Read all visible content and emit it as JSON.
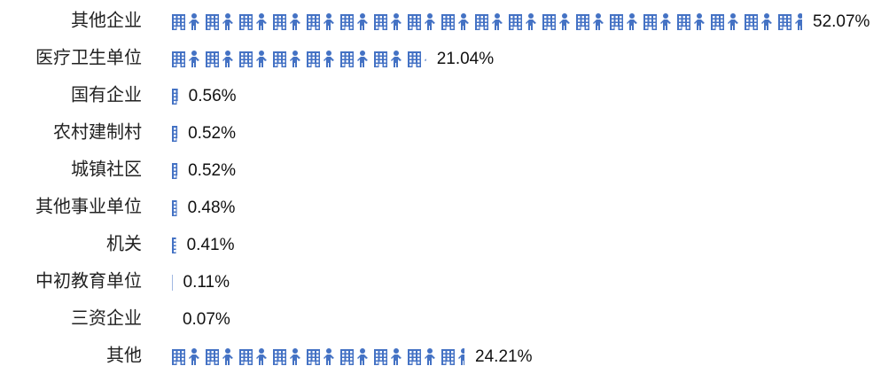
{
  "chart_data": {
    "type": "pictograph_bar",
    "categories": [
      "其他企业",
      "医疗卫生单位",
      "国有企业",
      "农村建制村",
      "城镇社区",
      "其他事业单位",
      "机关",
      "中初教育单位",
      "三资企业",
      "其他"
    ],
    "values": [
      52.07,
      21.04,
      0.56,
      0.52,
      0.52,
      0.48,
      0.41,
      0.11,
      0.07,
      24.21
    ],
    "value_labels": [
      "52.07%",
      "21.04%",
      "0.56%",
      "0.52%",
      "0.52%",
      "0.48%",
      "0.41%",
      "0.11%",
      "0.07%",
      "24.21%"
    ],
    "color": "#4472c4"
  }
}
